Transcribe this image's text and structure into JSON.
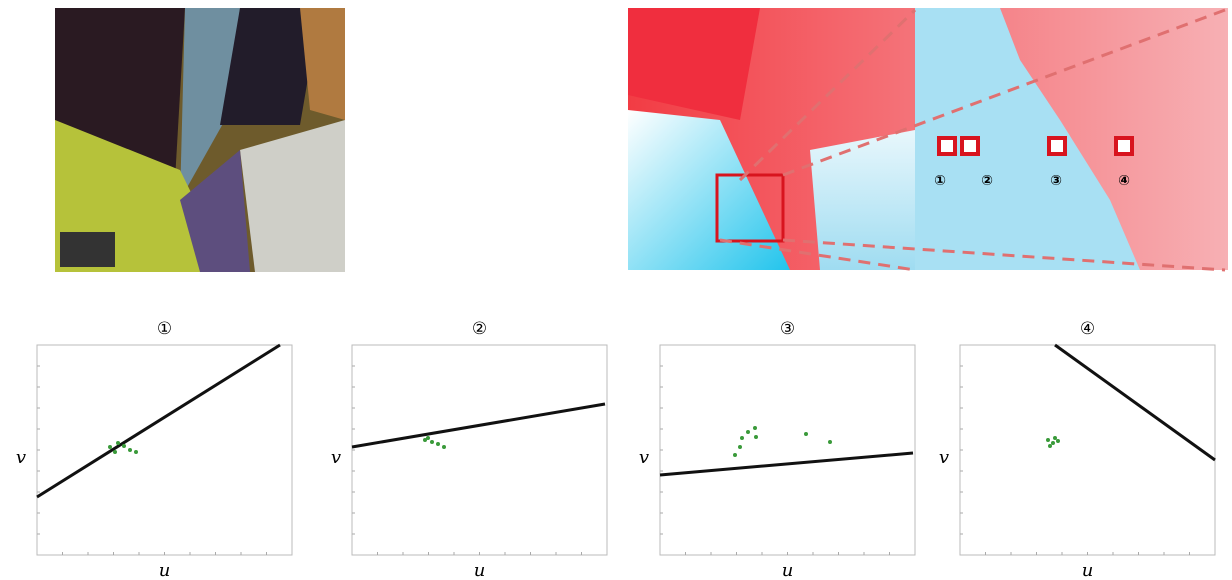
{
  "figure": {
    "flow_markers": [
      "①",
      "②",
      "③",
      "④"
    ],
    "panels": [
      {
        "title": "①",
        "x_label": "u",
        "y_label": "v"
      },
      {
        "title": "②",
        "x_label": "u",
        "y_label": "v"
      },
      {
        "title": "③",
        "x_label": "u",
        "y_label": "v"
      },
      {
        "title": "④",
        "x_label": "u",
        "y_label": "v"
      }
    ]
  }
}
